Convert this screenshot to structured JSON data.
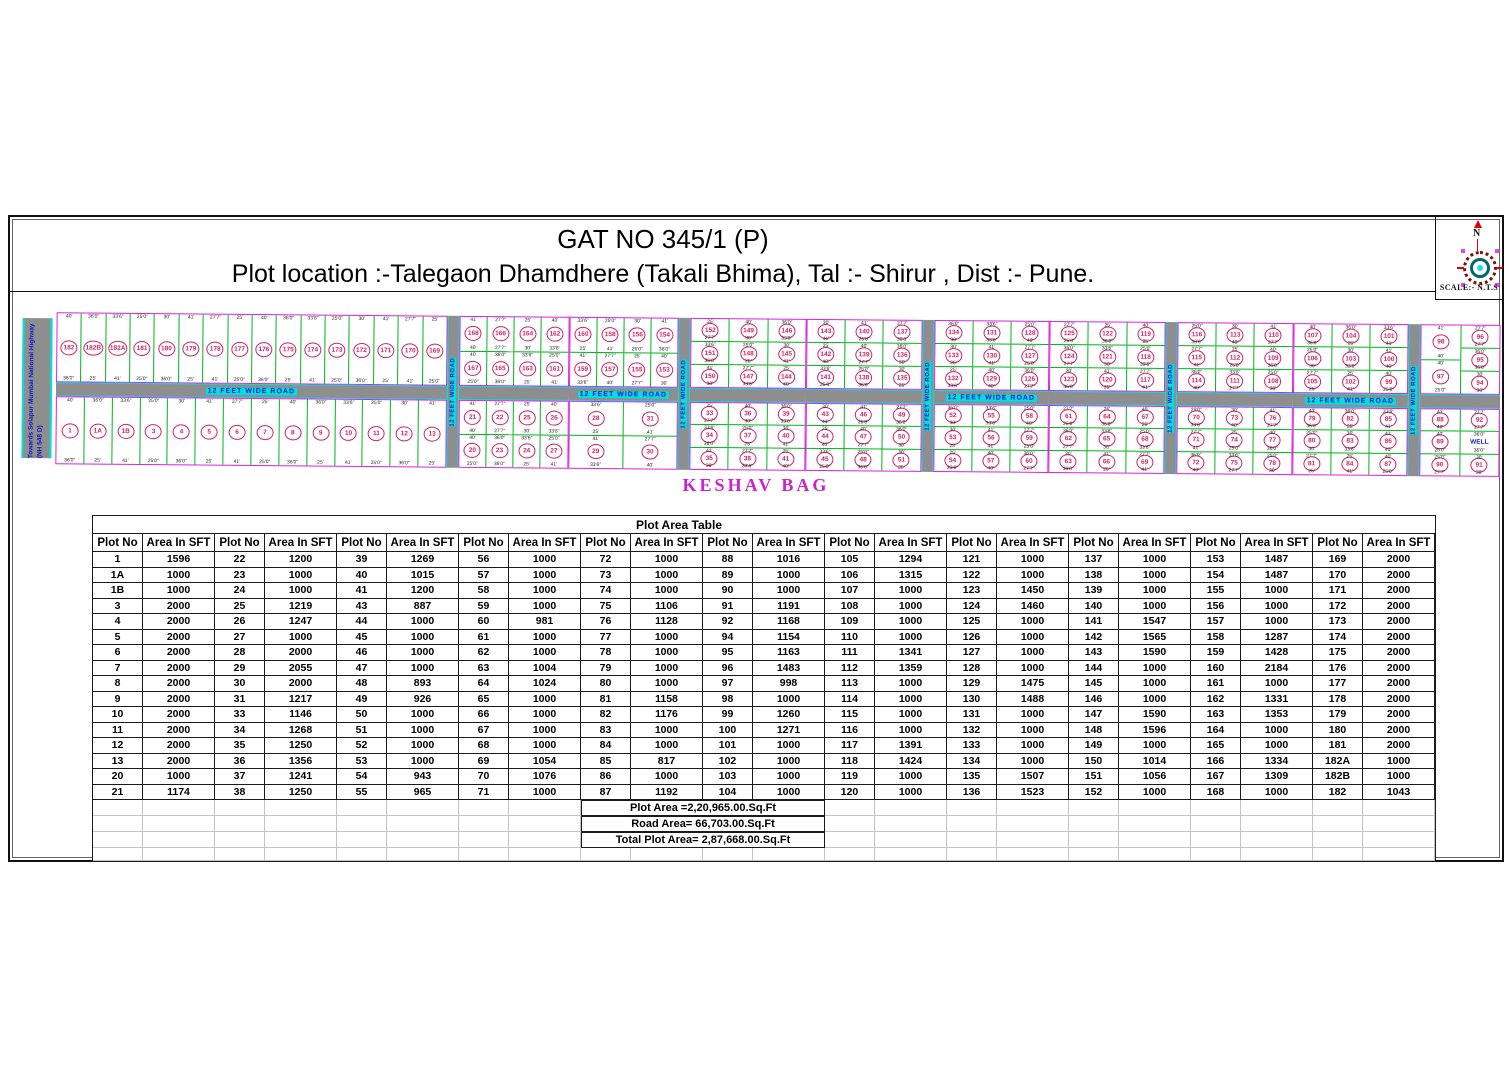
{
  "sheet": {
    "title": "GAT NO 345/1 (P)",
    "subtitle": "Plot location :-Talegaon Dhamdhere (Takali Bhima), Tal :- Shirur , Dist :- Pune.",
    "compass": {
      "north_label": "N",
      "scale_label": "SCALE:-  N.T.S"
    }
  },
  "map": {
    "estate_label": "KESHAV BAG",
    "highway_label": "Towards Solapur Mumbai National Highway",
    "highway_sub": "(NH 548 D)",
    "road_label": "12  FEET WIDE  ROAD",
    "well_label": "WELL",
    "dim_samples": [
      "40'",
      "25'0\"",
      "27'7\"",
      "36'0\"",
      "30'",
      "25'",
      "33'6\"",
      "41'"
    ],
    "colors": {
      "boundary": "#dd22dd",
      "divider": "#00b41e",
      "road_edge": "#00e0e0",
      "road_fill": "#8e8e8e",
      "plot_number": "#cc2266",
      "road_text": "#1414cc"
    },
    "top_sections": [
      [
        [
          "182"
        ],
        [
          "182B"
        ],
        [
          "182A"
        ],
        [
          "181"
        ],
        [
          "180"
        ],
        [
          "179"
        ],
        [
          "178"
        ],
        [
          "177"
        ],
        [
          "176"
        ],
        [
          "175"
        ],
        [
          "174"
        ],
        [
          "173"
        ],
        [
          "172"
        ],
        [
          "171"
        ],
        [
          "170"
        ],
        [
          "169"
        ]
      ],
      [
        [
          "168",
          "167"
        ],
        [
          "166",
          "165"
        ],
        [
          "164",
          "163"
        ],
        [
          "162",
          "161"
        ]
      ],
      [
        [
          "160",
          "159"
        ],
        [
          "158",
          "157"
        ],
        [
          "156",
          "155"
        ],
        [
          "154",
          "153"
        ]
      ],
      [
        [
          "152",
          "151",
          "150"
        ],
        [
          "149",
          "148",
          "147"
        ],
        [
          "146",
          "145",
          "144"
        ]
      ],
      [
        [
          "143",
          "142",
          "141"
        ],
        [
          "140",
          "139",
          "138"
        ],
        [
          "137",
          "136",
          "135"
        ]
      ],
      [
        [
          "134",
          "133",
          "132"
        ],
        [
          "131",
          "130",
          "129"
        ],
        [
          "128",
          "127",
          "126"
        ]
      ],
      [
        [
          "125",
          "124",
          "123"
        ],
        [
          "122",
          "121",
          "120"
        ],
        [
          "119",
          "118",
          "117"
        ]
      ],
      [
        [
          "116",
          "115",
          "114"
        ],
        [
          "113",
          "112",
          "111"
        ],
        [
          "110",
          "109",
          "108"
        ]
      ],
      [
        [
          "107",
          "106",
          "105"
        ],
        [
          "104",
          "103",
          "102"
        ],
        [
          "101",
          "100",
          "99"
        ]
      ],
      [
        [
          "98",
          "97"
        ],
        [
          "96",
          "95",
          "94"
        ]
      ]
    ],
    "bottom_sections": [
      [
        [
          "1"
        ],
        [
          "1A"
        ],
        [
          "1B"
        ],
        [
          "3"
        ],
        [
          "4"
        ],
        [
          "5"
        ],
        [
          "6"
        ],
        [
          "7"
        ],
        [
          "8"
        ],
        [
          "9"
        ],
        [
          "10"
        ],
        [
          "11"
        ],
        [
          "12"
        ],
        [
          "13"
        ]
      ],
      [
        [
          "21",
          "20"
        ],
        [
          "22",
          "23"
        ],
        [
          "25",
          "24"
        ],
        [
          "26",
          "27"
        ]
      ],
      [
        [
          "28",
          "29"
        ],
        [
          "31",
          "30"
        ]
      ],
      [
        [
          "33",
          "34",
          "35"
        ],
        [
          "36",
          "37",
          "38"
        ],
        [
          "39",
          "40",
          "41"
        ]
      ],
      [
        [
          "43",
          "44",
          "45"
        ],
        [
          "46",
          "47",
          "48"
        ],
        [
          "49",
          "50",
          "51"
        ]
      ],
      [
        [
          "52",
          "53",
          "54"
        ],
        [
          "55",
          "56",
          "57"
        ],
        [
          "58",
          "59",
          "60"
        ]
      ],
      [
        [
          "61",
          "62",
          "63"
        ],
        [
          "64",
          "65",
          "66"
        ],
        [
          "67",
          "68",
          "69"
        ]
      ],
      [
        [
          "70",
          "71",
          "72"
        ],
        [
          "73",
          "74",
          "75"
        ],
        [
          "76",
          "77",
          "78"
        ]
      ],
      [
        [
          "79",
          "80",
          "81"
        ],
        [
          "82",
          "83",
          "84"
        ],
        [
          "85",
          "86",
          "87"
        ]
      ],
      [
        [
          "88",
          "89",
          "90"
        ],
        [
          "92",
          "WELL",
          "91"
        ]
      ]
    ]
  },
  "table": {
    "title": "Plot Area Table",
    "header_plot": "Plot No",
    "header_area": "Area In SFT",
    "columns": [
      {
        "rows": [
          [
            "1",
            "1596"
          ],
          [
            "1A",
            "1000"
          ],
          [
            "1B",
            "1000"
          ],
          [
            "3",
            "2000"
          ],
          [
            "4",
            "2000"
          ],
          [
            "5",
            "2000"
          ],
          [
            "6",
            "2000"
          ],
          [
            "7",
            "2000"
          ],
          [
            "8",
            "2000"
          ],
          [
            "9",
            "2000"
          ],
          [
            "10",
            "2000"
          ],
          [
            "11",
            "2000"
          ],
          [
            "12",
            "2000"
          ],
          [
            "13",
            "2000"
          ],
          [
            "20",
            "1000"
          ],
          [
            "21",
            "1174"
          ]
        ]
      },
      {
        "rows": [
          [
            "22",
            "1200"
          ],
          [
            "23",
            "1000"
          ],
          [
            "24",
            "1000"
          ],
          [
            "25",
            "1219"
          ],
          [
            "26",
            "1247"
          ],
          [
            "27",
            "1000"
          ],
          [
            "28",
            "2000"
          ],
          [
            "29",
            "2055"
          ],
          [
            "30",
            "2000"
          ],
          [
            "31",
            "1217"
          ],
          [
            "33",
            "1146"
          ],
          [
            "34",
            "1268"
          ],
          [
            "35",
            "1250"
          ],
          [
            "36",
            "1356"
          ],
          [
            "37",
            "1241"
          ],
          [
            "38",
            "1250"
          ]
        ]
      },
      {
        "rows": [
          [
            "39",
            "1269"
          ],
          [
            "40",
            "1015"
          ],
          [
            "41",
            "1200"
          ],
          [
            "43",
            "887"
          ],
          [
            "44",
            "1000"
          ],
          [
            "45",
            "1000"
          ],
          [
            "46",
            "1000"
          ],
          [
            "47",
            "1000"
          ],
          [
            "48",
            "893"
          ],
          [
            "49",
            "926"
          ],
          [
            "50",
            "1000"
          ],
          [
            "51",
            "1000"
          ],
          [
            "52",
            "1000"
          ],
          [
            "53",
            "1000"
          ],
          [
            "54",
            "943"
          ],
          [
            "55",
            "965"
          ]
        ]
      },
      {
        "rows": [
          [
            "56",
            "1000"
          ],
          [
            "57",
            "1000"
          ],
          [
            "58",
            "1000"
          ],
          [
            "59",
            "1000"
          ],
          [
            "60",
            "981"
          ],
          [
            "61",
            "1000"
          ],
          [
            "62",
            "1000"
          ],
          [
            "63",
            "1004"
          ],
          [
            "64",
            "1024"
          ],
          [
            "65",
            "1000"
          ],
          [
            "66",
            "1000"
          ],
          [
            "67",
            "1000"
          ],
          [
            "68",
            "1000"
          ],
          [
            "69",
            "1054"
          ],
          [
            "70",
            "1076"
          ],
          [
            "71",
            "1000"
          ]
        ]
      },
      {
        "rows": [
          [
            "72",
            "1000"
          ],
          [
            "73",
            "1000"
          ],
          [
            "74",
            "1000"
          ],
          [
            "75",
            "1106"
          ],
          [
            "76",
            "1128"
          ],
          [
            "77",
            "1000"
          ],
          [
            "78",
            "1000"
          ],
          [
            "79",
            "1000"
          ],
          [
            "80",
            "1000"
          ],
          [
            "81",
            "1158"
          ],
          [
            "82",
            "1176"
          ],
          [
            "83",
            "1000"
          ],
          [
            "84",
            "1000"
          ],
          [
            "85",
            "817"
          ],
          [
            "86",
            "1000"
          ],
          [
            "87",
            "1192"
          ]
        ]
      },
      {
        "rows": [
          [
            "88",
            "1016"
          ],
          [
            "89",
            "1000"
          ],
          [
            "90",
            "1000"
          ],
          [
            "91",
            "1191"
          ],
          [
            "92",
            "1168"
          ],
          [
            "94",
            "1154"
          ],
          [
            "95",
            "1163"
          ],
          [
            "96",
            "1483"
          ],
          [
            "97",
            "998"
          ],
          [
            "98",
            "1000"
          ],
          [
            "99",
            "1260"
          ],
          [
            "100",
            "1271"
          ],
          [
            "101",
            "1000"
          ],
          [
            "102",
            "1000"
          ],
          [
            "103",
            "1000"
          ],
          [
            "104",
            "1000"
          ]
        ]
      },
      {
        "rows": [
          [
            "105",
            "1294"
          ],
          [
            "106",
            "1315"
          ],
          [
            "107",
            "1000"
          ],
          [
            "108",
            "1000"
          ],
          [
            "109",
            "1000"
          ],
          [
            "110",
            "1000"
          ],
          [
            "111",
            "1341"
          ],
          [
            "112",
            "1359"
          ],
          [
            "113",
            "1000"
          ],
          [
            "114",
            "1000"
          ],
          [
            "115",
            "1000"
          ],
          [
            "116",
            "1000"
          ],
          [
            "117",
            "1391"
          ],
          [
            "118",
            "1424"
          ],
          [
            "119",
            "1000"
          ],
          [
            "120",
            "1000"
          ]
        ]
      },
      {
        "rows": [
          [
            "121",
            "1000"
          ],
          [
            "122",
            "1000"
          ],
          [
            "123",
            "1450"
          ],
          [
            "124",
            "1460"
          ],
          [
            "125",
            "1000"
          ],
          [
            "126",
            "1000"
          ],
          [
            "127",
            "1000"
          ],
          [
            "128",
            "1000"
          ],
          [
            "129",
            "1475"
          ],
          [
            "130",
            "1488"
          ],
          [
            "131",
            "1000"
          ],
          [
            "132",
            "1000"
          ],
          [
            "133",
            "1000"
          ],
          [
            "134",
            "1000"
          ],
          [
            "135",
            "1507"
          ],
          [
            "136",
            "1523"
          ]
        ]
      },
      {
        "rows": [
          [
            "137",
            "1000"
          ],
          [
            "138",
            "1000"
          ],
          [
            "139",
            "1000"
          ],
          [
            "140",
            "1000"
          ],
          [
            "141",
            "1547"
          ],
          [
            "142",
            "1565"
          ],
          [
            "143",
            "1590"
          ],
          [
            "144",
            "1000"
          ],
          [
            "145",
            "1000"
          ],
          [
            "146",
            "1000"
          ],
          [
            "147",
            "1590"
          ],
          [
            "148",
            "1596"
          ],
          [
            "149",
            "1000"
          ],
          [
            "150",
            "1014"
          ],
          [
            "151",
            "1056"
          ],
          [
            "152",
            "1000"
          ]
        ]
      },
      {
        "rows": [
          [
            "153",
            "1487"
          ],
          [
            "154",
            "1487"
          ],
          [
            "155",
            "1000"
          ],
          [
            "156",
            "1000"
          ],
          [
            "157",
            "1000"
          ],
          [
            "158",
            "1287"
          ],
          [
            "159",
            "1428"
          ],
          [
            "160",
            "2184"
          ],
          [
            "161",
            "1000"
          ],
          [
            "162",
            "1331"
          ],
          [
            "163",
            "1353"
          ],
          [
            "164",
            "1000"
          ],
          [
            "165",
            "1000"
          ],
          [
            "166",
            "1334"
          ],
          [
            "167",
            "1309"
          ],
          [
            "168",
            "1000"
          ]
        ]
      },
      {
        "rows": [
          [
            "169",
            "2000"
          ],
          [
            "170",
            "2000"
          ],
          [
            "171",
            "2000"
          ],
          [
            "172",
            "2000"
          ],
          [
            "173",
            "2000"
          ],
          [
            "174",
            "2000"
          ],
          [
            "175",
            "2000"
          ],
          [
            "176",
            "2000"
          ],
          [
            "177",
            "2000"
          ],
          [
            "178",
            "2000"
          ],
          [
            "179",
            "2000"
          ],
          [
            "180",
            "2000"
          ],
          [
            "181",
            "2000"
          ],
          [
            "182A",
            "1000"
          ],
          [
            "182B",
            "1000"
          ],
          [
            "182",
            "1043"
          ]
        ]
      }
    ],
    "totals": [
      "Plot Area =2,20,965.00.Sq.Ft",
      "Road Area= 66,703.00.Sq.Ft",
      "Total Plot Area= 2,87,668.00.Sq.Ft"
    ]
  }
}
